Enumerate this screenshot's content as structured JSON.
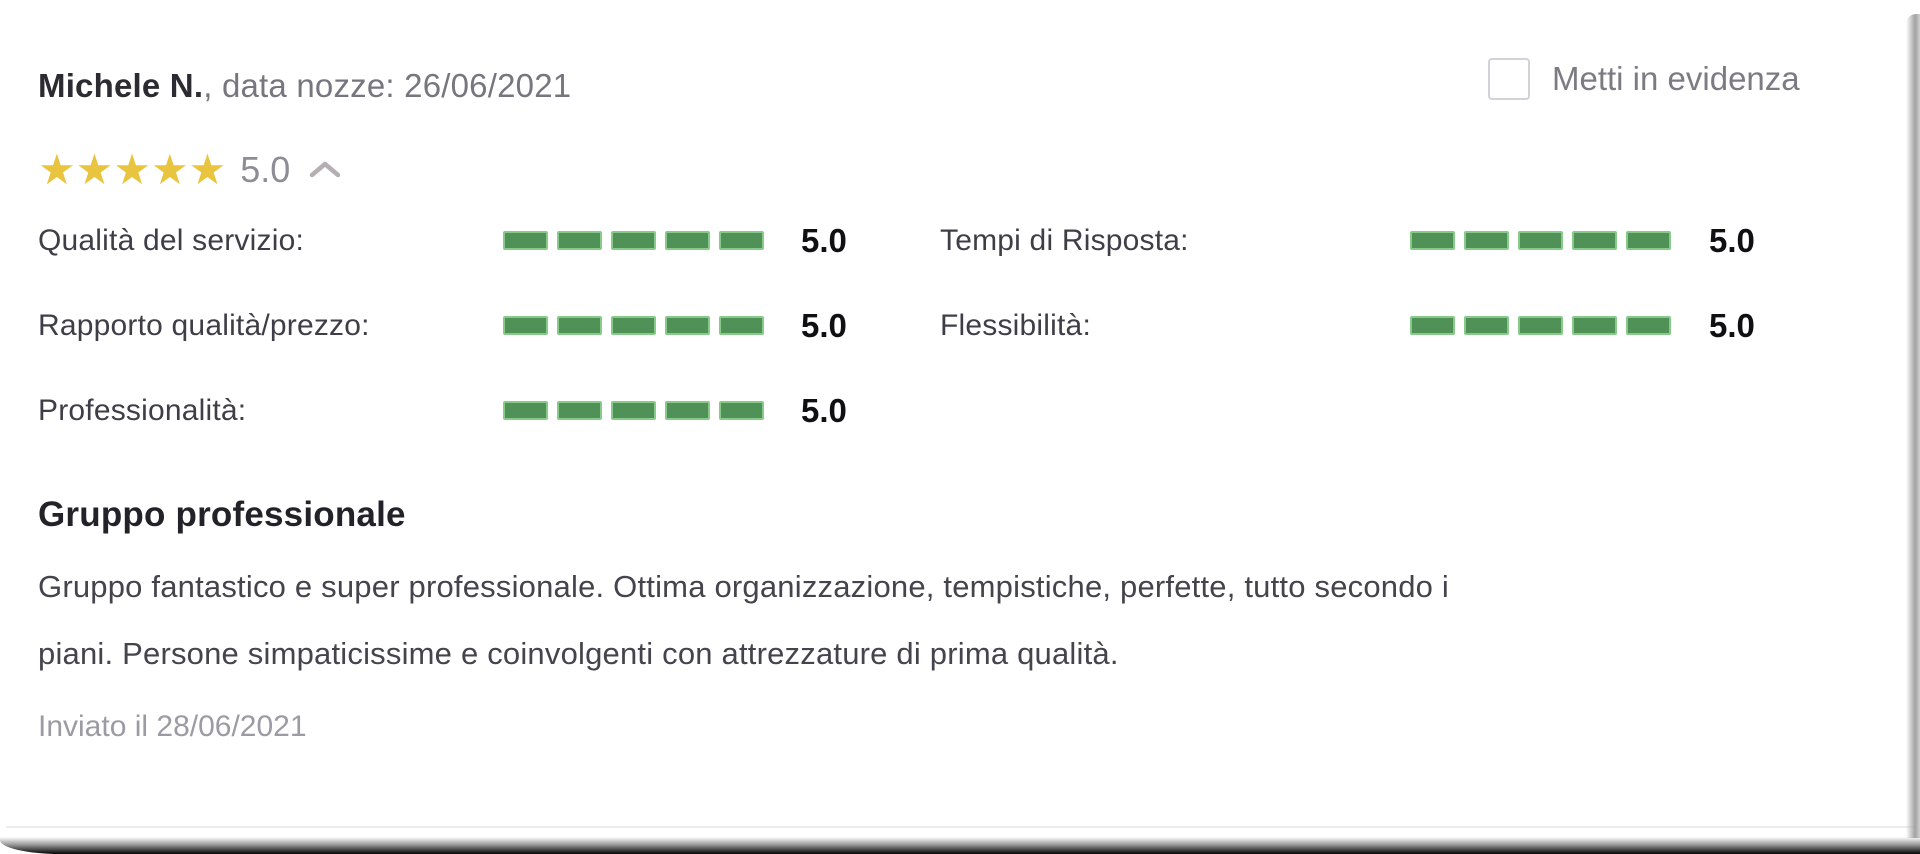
{
  "review": {
    "author": "Michele N.",
    "meta": ", data nozze: 26/06/2021",
    "overall": {
      "stars": 5,
      "value": "5.0"
    },
    "highlight_label": "Metti in evidenza",
    "highlight_checked": false,
    "ratings": {
      "left": [
        {
          "label": "Qualità del servizio:",
          "score": 5,
          "max": 5,
          "display": "5.0"
        },
        {
          "label": "Rapporto qualità/prezzo:",
          "score": 5,
          "max": 5,
          "display": "5.0"
        },
        {
          "label": "Professionalità:",
          "score": 5,
          "max": 5,
          "display": "5.0"
        }
      ],
      "right": [
        {
          "label": "Tempi di Risposta:",
          "score": 5,
          "max": 5,
          "display": "5.0"
        },
        {
          "label": "Flessibilità:",
          "score": 5,
          "max": 5,
          "display": "5.0"
        }
      ]
    },
    "title": "Gruppo professionale",
    "text_lines": [
      "Gruppo fantastico e super professionale. Ottima organizzazione, tempistiche, perfette, tutto secondo i",
      "piani. Persone simpaticissime e coinvolgenti con attrezzature di prima qualità."
    ],
    "submitted": "Inviato il 28/06/2021"
  },
  "icons": {
    "star": "★",
    "chevron_up": "chevron-up"
  },
  "colors": {
    "star_gold": "#e9c43f",
    "bar_fill": "#4f9156",
    "bar_border": "#87ca89",
    "name_text": "#2b2b31",
    "muted_text": "#76767e",
    "footer_text": "#9b9ba3",
    "caret_gray": "#b5aeb2"
  }
}
